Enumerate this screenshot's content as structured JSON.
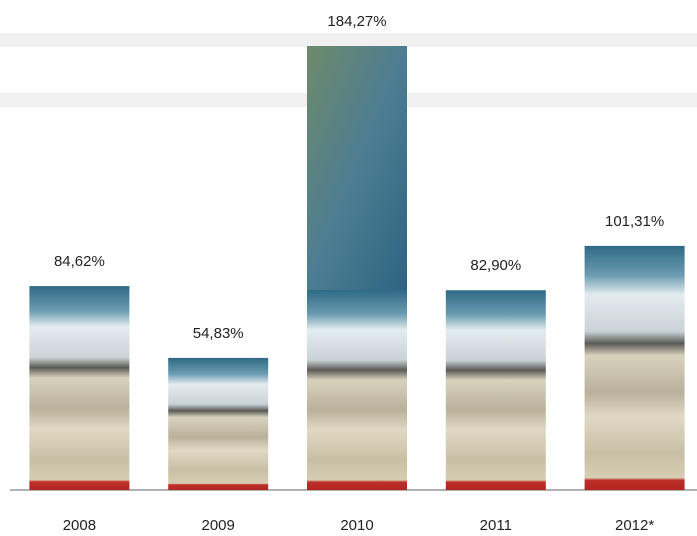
{
  "chart_data": {
    "type": "bar",
    "categories": [
      "2008",
      "2009",
      "2010",
      "2011",
      "2012*"
    ],
    "values": [
      84.62,
      54.83,
      184.27,
      82.9,
      101.31
    ],
    "value_labels": [
      "84,62%",
      "54,83%",
      "184,27%",
      "82,90%",
      "101,31%"
    ]
  }
}
